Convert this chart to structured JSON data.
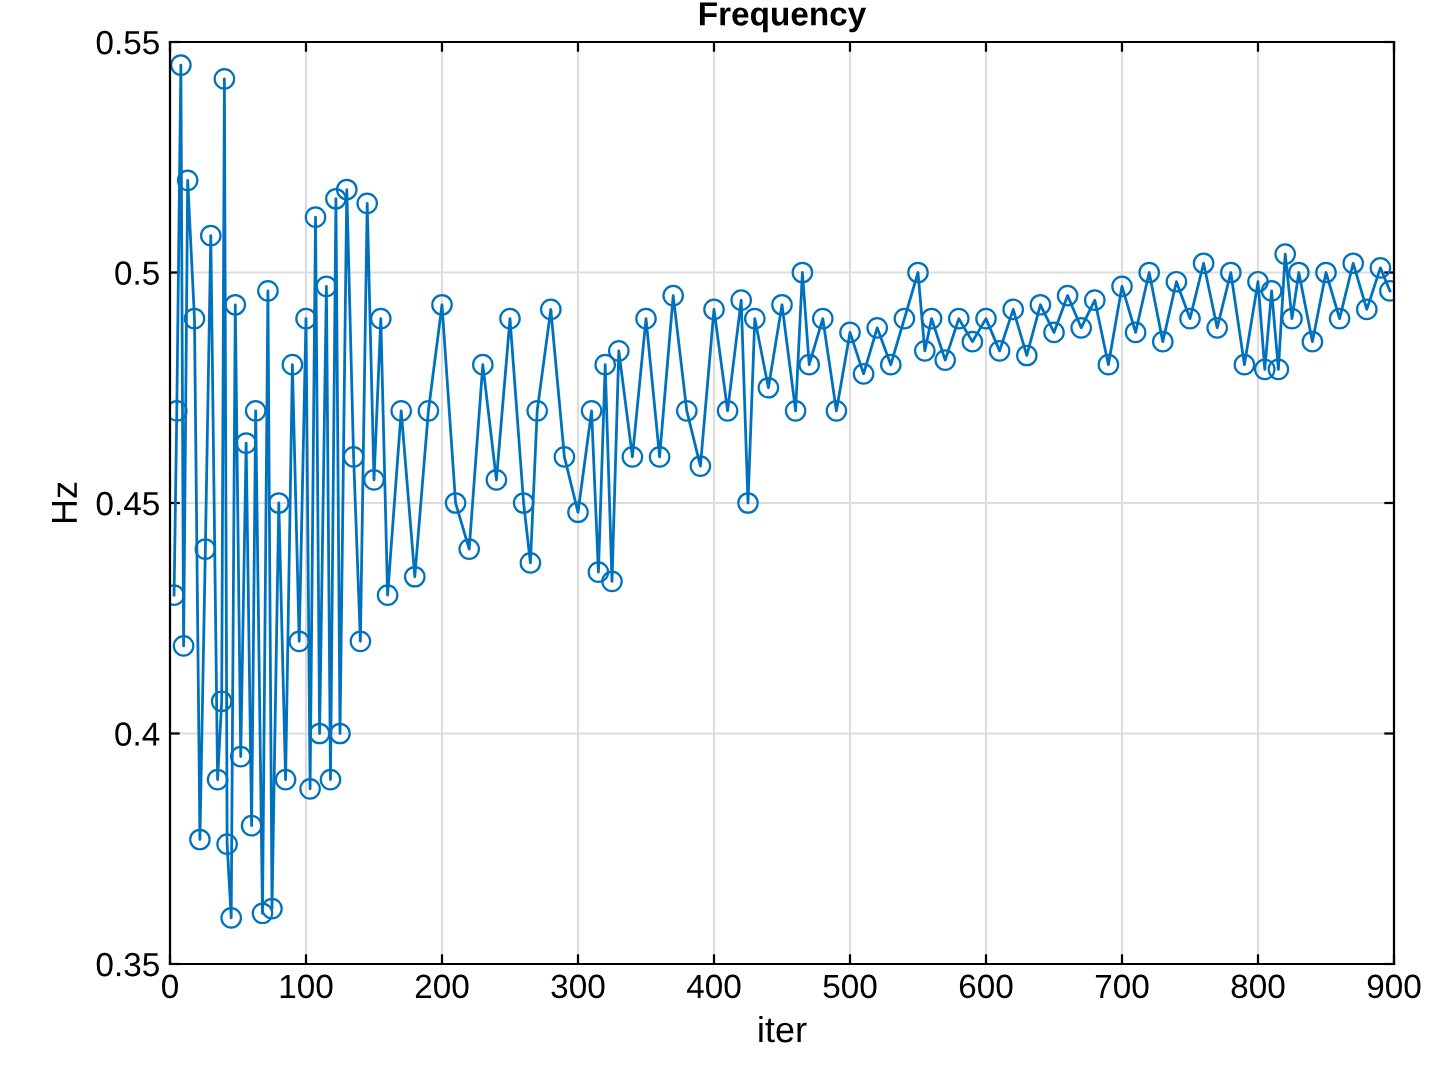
{
  "chart_data": {
    "type": "line",
    "title": "Frequency",
    "xlabel": "iter",
    "ylabel": "Hz",
    "xlim": [
      0,
      900
    ],
    "ylim": [
      0.35,
      0.55
    ],
    "xticks": [
      0,
      100,
      200,
      300,
      400,
      500,
      600,
      700,
      800,
      900
    ],
    "yticks": [
      0.35,
      0.4,
      0.45,
      0.5,
      0.55
    ],
    "grid": true,
    "marker": "circle",
    "line_style": "solid",
    "series": [
      {
        "color": "#0072bd",
        "x": [
          3,
          5,
          8,
          10,
          13,
          18,
          22,
          26,
          30,
          35,
          38,
          40,
          42,
          45,
          48,
          52,
          56,
          60,
          63,
          68,
          72,
          75,
          80,
          85,
          90,
          95,
          100,
          103,
          107,
          110,
          115,
          118,
          122,
          125,
          130,
          135,
          140,
          145,
          150,
          155,
          160,
          170,
          180,
          190,
          200,
          210,
          220,
          230,
          240,
          250,
          260,
          265,
          270,
          280,
          290,
          300,
          310,
          315,
          320,
          325,
          330,
          340,
          350,
          360,
          370,
          380,
          390,
          400,
          410,
          420,
          425,
          430,
          440,
          450,
          460,
          465,
          470,
          480,
          490,
          500,
          510,
          520,
          530,
          540,
          550,
          555,
          560,
          570,
          580,
          590,
          600,
          610,
          620,
          630,
          640,
          650,
          660,
          670,
          680,
          690,
          700,
          710,
          720,
          730,
          740,
          750,
          760,
          770,
          780,
          790,
          800,
          805,
          810,
          815,
          820,
          825,
          830,
          840,
          850,
          860,
          870,
          880,
          890,
          897
        ],
        "values": [
          0.43,
          0.47,
          0.545,
          0.419,
          0.52,
          0.49,
          0.377,
          0.44,
          0.508,
          0.39,
          0.407,
          0.542,
          0.376,
          0.36,
          0.493,
          0.395,
          0.463,
          0.38,
          0.47,
          0.361,
          0.496,
          0.362,
          0.45,
          0.39,
          0.48,
          0.42,
          0.49,
          0.388,
          0.512,
          0.4,
          0.497,
          0.39,
          0.516,
          0.4,
          0.518,
          0.46,
          0.42,
          0.515,
          0.455,
          0.49,
          0.43,
          0.47,
          0.434,
          0.47,
          0.493,
          0.45,
          0.44,
          0.48,
          0.455,
          0.49,
          0.45,
          0.437,
          0.47,
          0.492,
          0.46,
          0.448,
          0.47,
          0.435,
          0.48,
          0.433,
          0.483,
          0.46,
          0.49,
          0.46,
          0.495,
          0.47,
          0.458,
          0.492,
          0.47,
          0.494,
          0.45,
          0.49,
          0.475,
          0.493,
          0.47,
          0.5,
          0.48,
          0.49,
          0.47,
          0.487,
          0.478,
          0.488,
          0.48,
          0.49,
          0.5,
          0.483,
          0.49,
          0.481,
          0.49,
          0.485,
          0.49,
          0.483,
          0.492,
          0.482,
          0.493,
          0.487,
          0.495,
          0.488,
          0.494,
          0.48,
          0.497,
          0.487,
          0.5,
          0.485,
          0.498,
          0.49,
          0.502,
          0.488,
          0.5,
          0.48,
          0.498,
          0.479,
          0.496,
          0.479,
          0.504,
          0.49,
          0.5,
          0.485,
          0.5,
          0.49,
          0.502,
          0.492,
          0.501,
          0.496
        ]
      }
    ]
  }
}
